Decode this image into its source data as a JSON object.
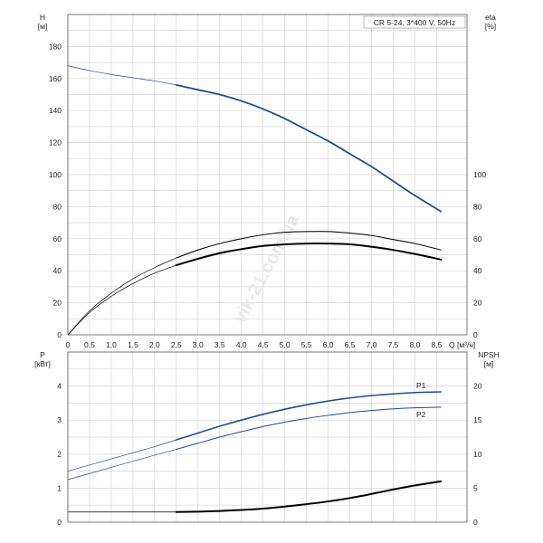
{
  "chart_data": [
    {
      "type": "line",
      "panel": "top",
      "title": "CR 5-24, 3*400 V, 50Hz",
      "watermark": "vik-21.com.ua",
      "xlabel": "Q [м³/ч]",
      "xlim": [
        0,
        9.2
      ],
      "xticks": [
        "0",
        "0,5",
        "1,0",
        "1,5",
        "2,0",
        "2,5",
        "3,0",
        "3,5",
        "4,0",
        "4,5",
        "5,0",
        "5,5",
        "6,0",
        "6,5",
        "7,0",
        "7,5",
        "8,0",
        "8,5"
      ],
      "ylabel_left": "H",
      "yunit_left": "[м]",
      "ylim_left": [
        0,
        200
      ],
      "yticks_left": [
        "0",
        "20",
        "40",
        "60",
        "80",
        "100",
        "120",
        "140",
        "160",
        "180"
      ],
      "ylabel_right": "eta",
      "yunit_right": "[%]",
      "ylim_right": [
        0,
        200
      ],
      "yticks_right": [
        "0",
        "20",
        "40",
        "60",
        "80",
        "100"
      ],
      "grid": true,
      "series": [
        {
          "axis": "left",
          "color": "#1f4e8c",
          "x": [
            0,
            0.5,
            1.0,
            1.5,
            2.0,
            2.5,
            3.0,
            3.5,
            4.0,
            4.5,
            5.0,
            5.5,
            6.0,
            6.5,
            7.0,
            7.5,
            8.0,
            8.6
          ],
          "y": [
            168,
            165,
            162.5,
            160.5,
            158.5,
            156,
            153,
            150,
            146,
            141,
            135,
            128,
            121,
            113,
            105,
            96,
            87,
            77
          ],
          "x_thin_below": 2.5
        },
        {
          "axis": "right",
          "color": "#111111",
          "x": [
            0,
            0.5,
            1.0,
            1.5,
            2.0,
            2.5,
            3.0,
            3.5,
            4.0,
            4.5,
            5.0,
            5.5,
            6.0,
            6.5,
            7.0,
            7.5,
            8.0,
            8.6
          ],
          "y": [
            0,
            15,
            26,
            35,
            42,
            48,
            53,
            57,
            60,
            62.5,
            64,
            64.5,
            64.5,
            63.5,
            62,
            59.5,
            57,
            53
          ],
          "x_thin_below": 2.5,
          "width": 1.1
        },
        {
          "axis": "right",
          "color": "#000000",
          "x": [
            0,
            0.5,
            1.0,
            1.5,
            2.0,
            2.5,
            3.0,
            3.5,
            4.0,
            4.5,
            5.0,
            5.5,
            6.0,
            6.5,
            7.0,
            7.5,
            8.0,
            8.6
          ],
          "y": [
            0,
            14,
            24,
            32,
            38.5,
            43.5,
            47.5,
            51,
            53.5,
            55.5,
            56.5,
            57,
            57,
            56.5,
            55,
            53,
            50.5,
            47
          ],
          "x_thin_below": 2.5,
          "width": 2
        }
      ]
    },
    {
      "type": "line",
      "panel": "bottom",
      "xlim": [
        0,
        9.2
      ],
      "ylabel_left": "P",
      "yunit_left": "[кВт]",
      "ylim_left": [
        0,
        5
      ],
      "yticks_left": [
        "0",
        "1",
        "2",
        "3",
        "4"
      ],
      "ylabel_right": "NPSH",
      "yunit_right": "[м]",
      "ylim_right": [
        0,
        25
      ],
      "yticks_right": [
        "0",
        "5",
        "10",
        "15",
        "20"
      ],
      "grid": true,
      "series": [
        {
          "name": "P1",
          "axis": "left",
          "color": "#1f4e8c",
          "x": [
            0,
            0.5,
            1.0,
            1.5,
            2.0,
            2.5,
            3.0,
            3.5,
            4.0,
            4.5,
            5.0,
            5.5,
            6.0,
            6.5,
            7.0,
            7.5,
            8.0,
            8.6
          ],
          "y": [
            1.5,
            1.68,
            1.86,
            2.04,
            2.22,
            2.42,
            2.62,
            2.82,
            3.0,
            3.17,
            3.32,
            3.45,
            3.56,
            3.65,
            3.72,
            3.77,
            3.81,
            3.83
          ],
          "x_thin_below": 2.5,
          "width": 1.6
        },
        {
          "name": "P2",
          "axis": "left",
          "color": "#1f4e8c",
          "x": [
            0,
            0.5,
            1.0,
            1.5,
            2.0,
            2.5,
            3.0,
            3.5,
            4.0,
            4.5,
            5.0,
            5.5,
            6.0,
            6.5,
            7.0,
            7.5,
            8.0,
            8.6
          ],
          "y": [
            1.25,
            1.43,
            1.61,
            1.79,
            1.97,
            2.14,
            2.32,
            2.5,
            2.66,
            2.81,
            2.94,
            3.05,
            3.14,
            3.22,
            3.28,
            3.33,
            3.36,
            3.38
          ],
          "x_thin_below": 2.5,
          "width": 1
        },
        {
          "axis": "right",
          "color": "#000000",
          "x": [
            0,
            0.5,
            1.0,
            1.5,
            2.0,
            2.5,
            3.0,
            3.5,
            4.0,
            4.5,
            5.0,
            5.5,
            6.0,
            6.5,
            7.0,
            7.5,
            8.0,
            8.6
          ],
          "y": [
            1.5,
            1.5,
            1.5,
            1.5,
            1.5,
            1.5,
            1.55,
            1.65,
            1.8,
            2.0,
            2.3,
            2.65,
            3.05,
            3.55,
            4.15,
            4.8,
            5.4,
            6.0
          ],
          "x_thin_below": 2.5,
          "width": 2
        }
      ]
    }
  ]
}
